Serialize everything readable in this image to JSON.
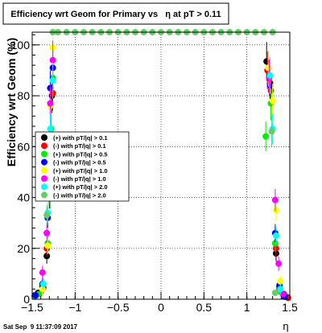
{
  "chart_data": {
    "type": "scatter",
    "title": "Efficiency wrt Geom for Primary vs   η at pT > 0.11",
    "xlabel": "η",
    "ylabel": "Efficiency wrt Geom (%)",
    "xlim": [
      -1.5,
      1.5
    ],
    "ylim": [
      0,
      105
    ],
    "grid": true,
    "legend_position": "left-middle",
    "x_ticks": [
      {
        "value": -1.5,
        "label": "−1.5"
      },
      {
        "value": -1,
        "label": "−1"
      },
      {
        "value": -0.5,
        "label": "−0.5"
      },
      {
        "value": 0,
        "label": "0"
      },
      {
        "value": 0.5,
        "label": "0.5"
      },
      {
        "value": 1,
        "label": "1"
      },
      {
        "value": 1.5,
        "label": "1.5"
      }
    ],
    "y_ticks": [
      {
        "value": 0,
        "label": "0"
      },
      {
        "value": 20,
        "label": "20"
      },
      {
        "value": 40,
        "label": "40"
      },
      {
        "value": 60,
        "label": "60"
      },
      {
        "value": 80,
        "label": "80"
      },
      {
        "value": 100,
        "label": "100"
      }
    ],
    "series": [
      {
        "name": "(+) with pT/|q| > 0.1",
        "color": "#000000",
        "points": [
          [
            -1.47,
            1.5
          ],
          [
            -1.43,
            2.5
          ],
          [
            -1.38,
            5
          ],
          [
            -1.33,
            17
          ],
          [
            -1.3,
            40
          ],
          [
            -1.27,
            80
          ],
          [
            1.23,
            93.5
          ],
          [
            1.27,
            85
          ],
          [
            1.34,
            18
          ],
          [
            1.38,
            5
          ],
          [
            1.43,
            2
          ],
          [
            1.47,
            0.8
          ]
        ]
      },
      {
        "name": "(-) with pT/|q| > 0.1",
        "color": "#ff0000",
        "points": [
          [
            -1.47,
            1.2
          ],
          [
            -1.42,
            2
          ],
          [
            -1.37,
            4.5
          ],
          [
            -1.33,
            20
          ],
          [
            -1.3,
            42
          ],
          [
            -1.26,
            81
          ],
          [
            1.24,
            90
          ],
          [
            1.28,
            82
          ],
          [
            1.34,
            20
          ],
          [
            1.38,
            4
          ],
          [
            1.44,
            1.5
          ],
          [
            1.48,
            0.5
          ]
        ]
      },
      {
        "name": "(+) with pT/|q| > 0.5",
        "color": "#00ee00",
        "points": [
          [
            -1.47,
            1
          ],
          [
            -1.42,
            2
          ],
          [
            -1.37,
            6
          ],
          [
            -1.32,
            22
          ],
          [
            -1.28,
            67
          ],
          [
            -1.26,
            87
          ],
          [
            1.22,
            64
          ],
          [
            1.28,
            77
          ],
          [
            1.33,
            22
          ],
          [
            1.39,
            3
          ],
          [
            1.44,
            1.2
          ]
        ]
      },
      {
        "name": "(-) with pT/|q| > 0.5",
        "color": "#0000ff",
        "points": [
          [
            -1.46,
            1.5
          ],
          [
            -1.38,
            6
          ],
          [
            -1.32,
            32
          ],
          [
            -1.29,
            83
          ],
          [
            -1.26,
            91
          ],
          [
            1.27,
            84
          ],
          [
            1.33,
            26
          ],
          [
            1.38,
            5.5
          ],
          [
            1.44,
            1
          ]
        ]
      },
      {
        "name": "(+) with pT/|q| > 1.0",
        "color": "#ffff00",
        "points": [
          [
            -1.38,
            4
          ],
          [
            -1.32,
            21
          ],
          [
            -1.29,
            76
          ],
          [
            -1.26,
            99
          ],
          [
            1.25,
            91
          ],
          [
            1.3,
            78
          ],
          [
            1.34,
            35
          ],
          [
            1.39,
            7
          ]
        ]
      },
      {
        "name": "(-) with pT/|q| > 1.0",
        "color": "#ff00ff",
        "points": [
          [
            -1.38,
            10.5
          ],
          [
            -1.33,
            26
          ],
          [
            -1.29,
            77
          ],
          [
            -1.26,
            94
          ],
          [
            1.26,
            87
          ],
          [
            1.33,
            39
          ],
          [
            1.37,
            14
          ],
          [
            1.42,
            2
          ]
        ]
      },
      {
        "name": "(+) with pT/|q| > 2.0",
        "color": "#00ffff",
        "points": [
          [
            -1.37,
            6
          ],
          [
            -1.32,
            34
          ],
          [
            -1.29,
            67
          ],
          [
            -1.26,
            86
          ],
          [
            1.27,
            88
          ],
          [
            1.3,
            67
          ],
          [
            1.34,
            25
          ],
          [
            1.39,
            4
          ]
        ]
      },
      {
        "name": "(-) with pT/|q| > 2.0",
        "color": "#66cc66",
        "points": [
          [
            -1.33,
            33
          ],
          [
            -1.29,
            40
          ],
          [
            -1.26,
            105
          ],
          [
            -1.2,
            105
          ],
          [
            -1.1,
            105
          ],
          [
            -1.0,
            105
          ],
          [
            -0.9,
            105
          ],
          [
            -0.8,
            105
          ],
          [
            -0.7,
            105
          ],
          [
            -0.6,
            105
          ],
          [
            -0.5,
            105
          ],
          [
            -0.4,
            105
          ],
          [
            -0.3,
            105
          ],
          [
            -0.2,
            105
          ],
          [
            -0.1,
            105
          ],
          [
            0.0,
            105
          ],
          [
            0.1,
            105
          ],
          [
            0.2,
            105
          ],
          [
            0.3,
            105
          ],
          [
            0.4,
            105
          ],
          [
            0.5,
            105
          ],
          [
            0.6,
            105
          ],
          [
            0.7,
            105
          ],
          [
            0.8,
            105
          ],
          [
            0.9,
            105
          ],
          [
            1.0,
            105
          ],
          [
            1.1,
            105
          ],
          [
            1.2,
            105
          ],
          [
            1.3,
            105
          ],
          [
            1.29,
            66
          ],
          [
            1.33,
            2.5
          ]
        ]
      }
    ]
  },
  "footer": {
    "timestamp": "Sat Sep  9 11:37:09 2017"
  },
  "colors": {
    "frame": "#000000",
    "grid": "#000000",
    "background": "#ffffff"
  }
}
